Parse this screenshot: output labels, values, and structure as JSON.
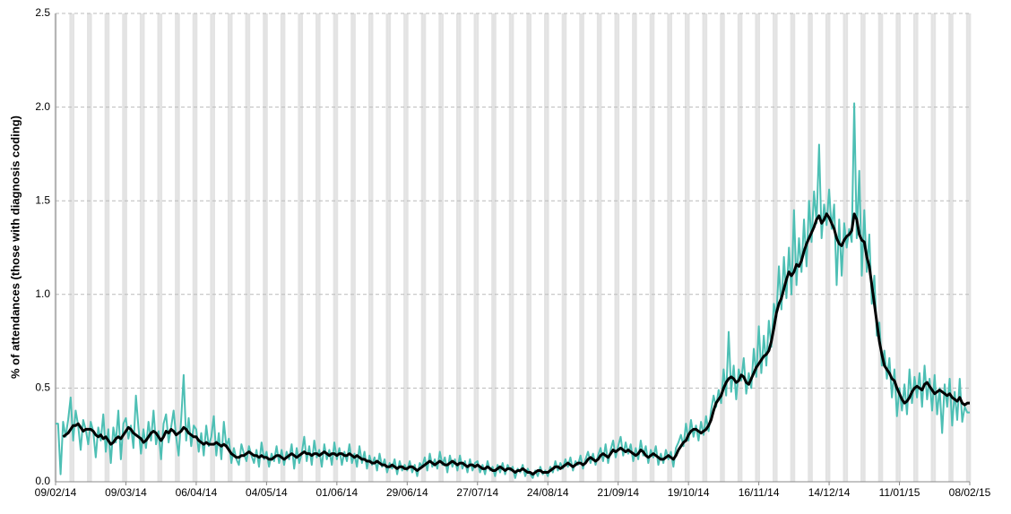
{
  "chart_data": {
    "type": "line",
    "y_label": "% of attendances (those with diagnosis coding)",
    "categories": [
      "09/02/14",
      null,
      null,
      null,
      null,
      null,
      null,
      null,
      null,
      null,
      null,
      null,
      null,
      null,
      null,
      null,
      null,
      null,
      null,
      null,
      null,
      null,
      null,
      null,
      null,
      null,
      null,
      null,
      "09/03/14",
      null,
      null,
      null,
      null,
      null,
      null,
      null,
      null,
      null,
      null,
      null,
      null,
      null,
      null,
      null,
      null,
      null,
      null,
      null,
      null,
      null,
      null,
      null,
      null,
      null,
      null,
      null,
      "06/04/14",
      null,
      null,
      null,
      null,
      null,
      null,
      null,
      null,
      null,
      null,
      null,
      null,
      null,
      null,
      null,
      null,
      null,
      null,
      null,
      null,
      null,
      null,
      null,
      null,
      null,
      null,
      null,
      "04/05/14",
      null,
      null,
      null,
      null,
      null,
      null,
      null,
      null,
      null,
      null,
      null,
      null,
      null,
      null,
      null,
      null,
      null,
      null,
      null,
      null,
      null,
      null,
      null,
      null,
      null,
      null,
      null,
      "01/06/14",
      null,
      null,
      null,
      null,
      null,
      null,
      null,
      null,
      null,
      null,
      null,
      null,
      null,
      null,
      null,
      null,
      null,
      null,
      null,
      null,
      null,
      null,
      null,
      null,
      null,
      null,
      null,
      "29/06/14",
      null,
      null,
      null,
      null,
      null,
      null,
      null,
      null,
      null,
      null,
      null,
      null,
      null,
      null,
      null,
      null,
      null,
      null,
      null,
      null,
      null,
      null,
      null,
      null,
      null,
      null,
      null,
      "27/07/14",
      null,
      null,
      null,
      null,
      null,
      null,
      null,
      null,
      null,
      null,
      null,
      null,
      null,
      null,
      null,
      null,
      null,
      null,
      null,
      null,
      null,
      null,
      null,
      null,
      null,
      null,
      null,
      "24/08/14",
      null,
      null,
      null,
      null,
      null,
      null,
      null,
      null,
      null,
      null,
      null,
      null,
      null,
      null,
      null,
      null,
      null,
      null,
      null,
      null,
      null,
      null,
      null,
      null,
      null,
      null,
      null,
      "21/09/14",
      null,
      null,
      null,
      null,
      null,
      null,
      null,
      null,
      null,
      null,
      null,
      null,
      null,
      null,
      null,
      null,
      null,
      null,
      null,
      null,
      null,
      null,
      null,
      null,
      null,
      null,
      null,
      "19/10/14",
      null,
      null,
      null,
      null,
      null,
      null,
      null,
      null,
      null,
      null,
      null,
      null,
      null,
      null,
      null,
      null,
      null,
      null,
      null,
      null,
      null,
      null,
      null,
      null,
      null,
      null,
      null,
      "16/11/14",
      null,
      null,
      null,
      null,
      null,
      null,
      null,
      null,
      null,
      null,
      null,
      null,
      null,
      null,
      null,
      null,
      null,
      null,
      null,
      null,
      null,
      null,
      null,
      null,
      null,
      null,
      null,
      "14/12/14",
      null,
      null,
      null,
      null,
      null,
      null,
      null,
      null,
      null,
      null,
      null,
      null,
      null,
      null,
      null,
      null,
      null,
      null,
      null,
      null,
      null,
      null,
      null,
      null,
      null,
      null,
      null,
      "11/01/15",
      null,
      null,
      null,
      null,
      null,
      null,
      null,
      null,
      null,
      null,
      null,
      null,
      null,
      null,
      null,
      null,
      null,
      null,
      null,
      null,
      null,
      null,
      null,
      null,
      null,
      null,
      null,
      "08/02/15"
    ],
    "series": [
      {
        "color": "#4dbfb4",
        "width": 2,
        "values": [
          0.31,
          0.31,
          0.04,
          0.32,
          0.24,
          0.33,
          0.45,
          0.22,
          0.38,
          0.3,
          0.17,
          0.33,
          0.28,
          0.2,
          0.32,
          0.27,
          0.13,
          0.29,
          0.22,
          0.36,
          0.16,
          0.28,
          0.1,
          0.29,
          0.21,
          0.38,
          0.12,
          0.31,
          0.34,
          0.23,
          0.3,
          0.18,
          0.46,
          0.29,
          0.15,
          0.28,
          0.18,
          0.32,
          0.22,
          0.38,
          0.2,
          0.27,
          0.12,
          0.31,
          0.36,
          0.21,
          0.29,
          0.38,
          0.24,
          0.14,
          0.33,
          0.57,
          0.22,
          0.34,
          0.19,
          0.3,
          0.28,
          0.16,
          0.26,
          0.14,
          0.3,
          0.19,
          0.24,
          0.35,
          0.14,
          0.26,
          0.12,
          0.32,
          0.19,
          0.23,
          0.1,
          0.18,
          0.12,
          0.09,
          0.2,
          0.15,
          0.11,
          0.19,
          0.14,
          0.1,
          0.17,
          0.08,
          0.21,
          0.12,
          0.16,
          0.08,
          0.15,
          0.11,
          0.19,
          0.1,
          0.17,
          0.09,
          0.16,
          0.12,
          0.2,
          0.07,
          0.18,
          0.1,
          0.15,
          0.24,
          0.11,
          0.19,
          0.09,
          0.22,
          0.13,
          0.17,
          0.08,
          0.2,
          0.12,
          0.17,
          0.09,
          0.21,
          0.12,
          0.18,
          0.09,
          0.16,
          0.11,
          0.2,
          0.1,
          0.15,
          0.08,
          0.19,
          0.1,
          0.16,
          0.07,
          0.14,
          0.09,
          0.13,
          0.06,
          0.15,
          0.08,
          0.12,
          0.05,
          0.1,
          0.07,
          0.12,
          0.04,
          0.11,
          0.06,
          0.09,
          0.06,
          0.11,
          0.05,
          0.09,
          0.03,
          0.1,
          0.08,
          0.13,
          0.06,
          0.15,
          0.08,
          0.12,
          0.07,
          0.16,
          0.09,
          0.13,
          0.05,
          0.14,
          0.08,
          0.12,
          0.06,
          0.14,
          0.07,
          0.11,
          0.05,
          0.12,
          0.06,
          0.1,
          0.11,
          0.05,
          0.09,
          0.04,
          0.11,
          0.06,
          0.08,
          0.03,
          0.09,
          0.05,
          0.1,
          0.04,
          0.09,
          0.06,
          0.08,
          0.02,
          0.07,
          0.05,
          0.09,
          0.03,
          0.07,
          0.04,
          0.02,
          0.06,
          0.03,
          0.08,
          0.04,
          0.06,
          0.03,
          0.08,
          0.05,
          0.11,
          0.06,
          0.1,
          0.07,
          0.12,
          0.08,
          0.13,
          0.06,
          0.11,
          0.09,
          0.14,
          0.07,
          0.12,
          0.16,
          0.1,
          0.15,
          0.09,
          0.14,
          0.18,
          0.11,
          0.2,
          0.1,
          0.17,
          0.22,
          0.13,
          0.19,
          0.24,
          0.14,
          0.21,
          0.15,
          0.2,
          0.11,
          0.18,
          0.12,
          0.22,
          0.14,
          0.19,
          0.1,
          0.17,
          0.13,
          0.19,
          0.09,
          0.15,
          0.1,
          0.17,
          0.12,
          0.16,
          0.08,
          0.18,
          0.21,
          0.25,
          0.19,
          0.31,
          0.22,
          0.33,
          0.24,
          0.3,
          0.22,
          0.32,
          0.25,
          0.35,
          0.27,
          0.38,
          0.46,
          0.4,
          0.49,
          0.42,
          0.6,
          0.46,
          0.8,
          0.48,
          0.62,
          0.44,
          0.6,
          0.54,
          0.66,
          0.47,
          0.58,
          0.5,
          0.71,
          0.56,
          0.83,
          0.58,
          0.78,
          0.62,
          0.86,
          0.72,
          0.95,
          0.88,
          1.15,
          0.92,
          1.2,
          0.98,
          1.25,
          1.0,
          1.45,
          1.05,
          1.3,
          1.12,
          1.4,
          1.15,
          1.5,
          1.28,
          1.55,
          1.38,
          1.8,
          1.3,
          1.48,
          1.37,
          1.56,
          1.35,
          1.48,
          1.05,
          1.4,
          1.1,
          1.38,
          1.25,
          1.35,
          1.28,
          2.02,
          1.3,
          1.66,
          1.1,
          1.45,
          1.12,
          1.32,
          0.95,
          1.1,
          0.78,
          0.85,
          0.62,
          0.7,
          0.55,
          0.66,
          0.45,
          0.6,
          0.35,
          0.5,
          0.38,
          0.52,
          0.36,
          0.6,
          0.42,
          0.56,
          0.45,
          0.58,
          0.4,
          0.62,
          0.44,
          0.55,
          0.38,
          0.57,
          0.36,
          0.5,
          0.26,
          0.52,
          0.4,
          0.55,
          0.3,
          0.48,
          0.33,
          0.55,
          0.32,
          0.4,
          0.37,
          0.37
        ]
      },
      {
        "color": "#000000",
        "width": 3,
        "values": [
          null,
          null,
          null,
          0.24,
          0.25,
          0.26,
          0.28,
          0.3,
          0.3,
          0.31,
          0.29,
          0.27,
          0.28,
          0.28,
          0.28,
          0.27,
          0.25,
          0.24,
          0.25,
          0.23,
          0.24,
          0.22,
          0.2,
          0.21,
          0.23,
          0.24,
          0.23,
          0.25,
          0.27,
          0.29,
          0.28,
          0.26,
          0.25,
          0.24,
          0.23,
          0.21,
          0.22,
          0.24,
          0.26,
          0.27,
          0.26,
          0.24,
          0.22,
          0.24,
          0.27,
          0.26,
          0.28,
          0.27,
          0.25,
          0.26,
          0.27,
          0.29,
          0.28,
          0.26,
          0.25,
          0.24,
          0.24,
          0.22,
          0.21,
          0.2,
          0.21,
          0.2,
          0.2,
          0.2,
          0.21,
          0.2,
          0.19,
          0.2,
          0.19,
          0.17,
          0.15,
          0.14,
          0.13,
          0.13,
          0.14,
          0.14,
          0.15,
          0.16,
          0.15,
          0.14,
          0.14,
          0.13,
          0.14,
          0.13,
          0.13,
          0.12,
          0.12,
          0.13,
          0.14,
          0.14,
          0.13,
          0.12,
          0.13,
          0.14,
          0.15,
          0.14,
          0.13,
          0.14,
          0.15,
          0.16,
          0.15,
          0.15,
          0.14,
          0.15,
          0.15,
          0.14,
          0.15,
          0.16,
          0.15,
          0.14,
          0.15,
          0.15,
          0.14,
          0.15,
          0.15,
          0.14,
          0.14,
          0.15,
          0.14,
          0.13,
          0.14,
          0.13,
          0.12,
          0.12,
          0.11,
          0.11,
          0.1,
          0.1,
          0.11,
          0.1,
          0.09,
          0.09,
          0.08,
          0.08,
          0.09,
          0.08,
          0.07,
          0.08,
          0.08,
          0.07,
          0.07,
          0.08,
          0.08,
          0.07,
          0.06,
          0.07,
          0.08,
          0.09,
          0.1,
          0.11,
          0.1,
          0.09,
          0.1,
          0.11,
          0.1,
          0.09,
          0.09,
          0.1,
          0.11,
          0.1,
          0.09,
          0.1,
          0.1,
          0.09,
          0.08,
          0.09,
          0.09,
          0.08,
          0.09,
          0.08,
          0.07,
          0.07,
          0.08,
          0.07,
          0.06,
          0.06,
          0.07,
          0.08,
          0.07,
          0.06,
          0.07,
          0.07,
          0.06,
          0.05,
          0.06,
          0.06,
          0.07,
          0.06,
          0.05,
          0.05,
          0.04,
          0.05,
          0.06,
          0.06,
          0.05,
          0.05,
          0.05,
          0.06,
          0.07,
          0.08,
          0.08,
          0.07,
          0.08,
          0.09,
          0.1,
          0.09,
          0.08,
          0.09,
          0.1,
          0.1,
          0.09,
          0.1,
          0.12,
          0.13,
          0.12,
          0.11,
          0.12,
          0.14,
          0.15,
          0.14,
          0.13,
          0.15,
          0.17,
          0.16,
          0.17,
          0.18,
          0.17,
          0.16,
          0.17,
          0.16,
          0.15,
          0.14,
          0.15,
          0.17,
          0.16,
          0.14,
          0.13,
          0.14,
          0.15,
          0.14,
          0.13,
          0.12,
          0.12,
          0.13,
          0.14,
          0.13,
          0.12,
          0.14,
          0.17,
          0.19,
          0.21,
          0.22,
          0.25,
          0.27,
          0.28,
          0.28,
          0.27,
          0.26,
          0.27,
          0.28,
          0.3,
          0.33,
          0.38,
          0.42,
          0.44,
          0.46,
          0.5,
          0.53,
          0.55,
          0.56,
          0.55,
          0.53,
          0.54,
          0.57,
          0.56,
          0.53,
          0.52,
          0.55,
          0.58,
          0.61,
          0.63,
          0.65,
          0.67,
          0.68,
          0.7,
          0.75,
          0.82,
          0.9,
          0.95,
          0.98,
          1.03,
          1.08,
          1.12,
          1.1,
          1.12,
          1.16,
          1.15,
          1.18,
          1.23,
          1.27,
          1.3,
          1.33,
          1.36,
          1.4,
          1.42,
          1.38,
          1.4,
          1.43,
          1.41,
          1.38,
          1.35,
          1.3,
          1.27,
          1.26,
          1.29,
          1.31,
          1.32,
          1.34,
          1.43,
          1.4,
          1.32,
          1.29,
          1.28,
          1.2,
          1.15,
          1.05,
          0.95,
          0.85,
          0.75,
          0.68,
          0.62,
          0.6,
          0.58,
          0.55,
          0.54,
          0.5,
          0.47,
          0.44,
          0.42,
          0.43,
          0.45,
          0.48,
          0.5,
          0.51,
          0.5,
          0.49,
          0.52,
          0.53,
          0.51,
          0.49,
          0.47,
          0.48,
          0.49,
          0.48,
          0.47,
          0.46,
          0.47,
          0.45,
          0.44,
          0.43,
          0.45,
          0.42,
          0.41,
          0.42,
          0.42
        ]
      }
    ],
    "ylim": [
      0,
      2.5
    ],
    "yticks": [
      {
        "value": 0,
        "label": "0.0"
      },
      0.5,
      {
        "value": 1,
        "label": "1.0"
      },
      1.5,
      {
        "value": 2,
        "label": "2.0"
      },
      2.5
    ],
    "grid": true
  }
}
